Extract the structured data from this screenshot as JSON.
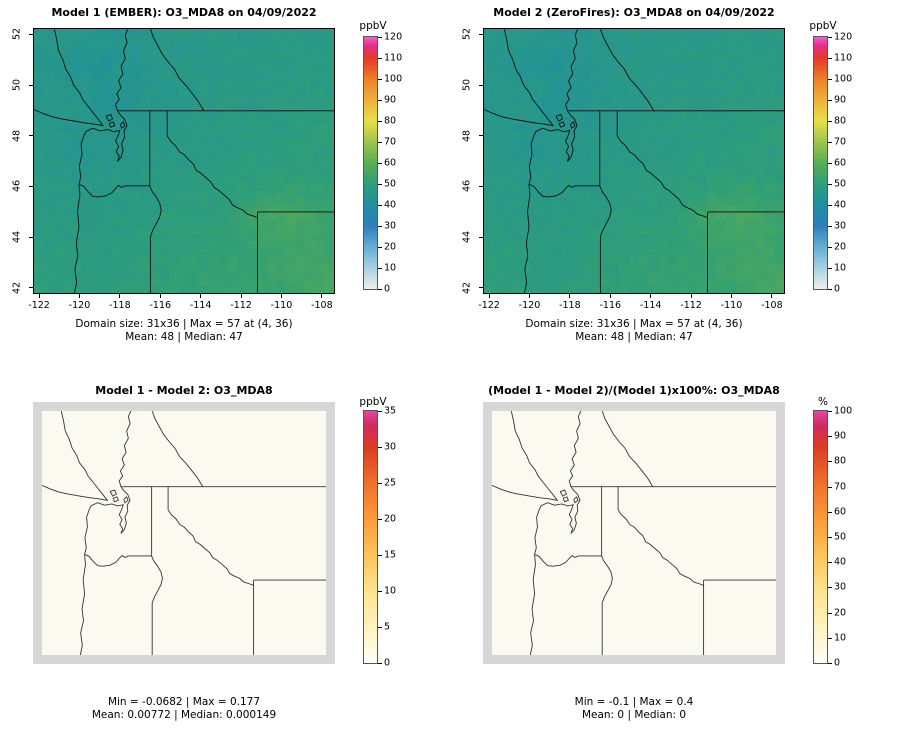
{
  "figure": {
    "background": "#ffffff"
  },
  "panels": [
    {
      "title": "Model 1 (EMBER): O3_MDA8 on 04/09/2022",
      "caption1": "Domain size: 31x36 | Max = 57 at (4, 36)",
      "caption2": "Mean: 48 | Median: 47"
    },
    {
      "title": "Model 2 (ZeroFires): O3_MDA8 on 04/09/2022",
      "caption1": "Domain size: 31x36 | Max = 57 at (4, 36)",
      "caption2": "Mean: 48 | Median: 47"
    },
    {
      "title": "Model 1 - Model 2: O3_MDA8",
      "caption1": "Min = -0.0682 | Max = 0.177",
      "caption2": "Mean: 0.00772 | Median: 0.000149"
    },
    {
      "title": "(Model 1 - Model 2)/(Model 1)x100%: O3_MDA8",
      "caption1": "Min = -0.1 | Max = 0.4",
      "caption2": "Mean: 0 | Median: 0"
    }
  ],
  "axes": {
    "x_ticks": [
      -122,
      -120,
      -118,
      -116,
      -114,
      -112,
      -110,
      -108
    ],
    "y_ticks": [
      42,
      44,
      46,
      48,
      50,
      52
    ],
    "x_range": [
      -122.3,
      -107.35
    ],
    "y_range": [
      41.75,
      52.25
    ]
  },
  "colorbars": [
    {
      "title": "ppbV",
      "min": 0,
      "max": 120,
      "ticks": [
        0,
        10,
        20,
        30,
        40,
        50,
        60,
        70,
        80,
        90,
        100,
        110,
        120
      ],
      "stops": [
        [
          0,
          "#f0efeb"
        ],
        [
          10,
          "#aacfe2"
        ],
        [
          20,
          "#64aed3"
        ],
        [
          30,
          "#2f7fbc"
        ],
        [
          40,
          "#1f8f9f"
        ],
        [
          50,
          "#2f9e78"
        ],
        [
          60,
          "#5aad52"
        ],
        [
          70,
          "#9dc44d"
        ],
        [
          80,
          "#e8df4a"
        ],
        [
          90,
          "#f0b03c"
        ],
        [
          100,
          "#ee7f28"
        ],
        [
          110,
          "#e5372b"
        ],
        [
          116,
          "#e2308b"
        ],
        [
          120,
          "#ef63c3"
        ]
      ]
    },
    {
      "title": "ppbV",
      "min": 0,
      "max": 120,
      "ticks": [
        0,
        10,
        20,
        30,
        40,
        50,
        60,
        70,
        80,
        90,
        100,
        110,
        120
      ],
      "stops": [
        [
          0,
          "#f0efeb"
        ],
        [
          10,
          "#aacfe2"
        ],
        [
          20,
          "#64aed3"
        ],
        [
          30,
          "#2f7fbc"
        ],
        [
          40,
          "#1f8f9f"
        ],
        [
          50,
          "#2f9e78"
        ],
        [
          60,
          "#5aad52"
        ],
        [
          70,
          "#9dc44d"
        ],
        [
          80,
          "#e8df4a"
        ],
        [
          90,
          "#f0b03c"
        ],
        [
          100,
          "#ee7f28"
        ],
        [
          110,
          "#e5372b"
        ],
        [
          116,
          "#e2308b"
        ],
        [
          120,
          "#ef63c3"
        ]
      ]
    },
    {
      "title": "ppbV",
      "min": 0,
      "max": 35,
      "ticks": [
        0,
        5,
        10,
        15,
        20,
        25,
        30,
        35
      ],
      "stops": [
        [
          0,
          "#fffef8"
        ],
        [
          5,
          "#fdf3bf"
        ],
        [
          10,
          "#fee38d"
        ],
        [
          15,
          "#fdc35b"
        ],
        [
          20,
          "#fb9b3a"
        ],
        [
          25,
          "#ef702b"
        ],
        [
          30,
          "#dc3b26"
        ],
        [
          33,
          "#cf2a60"
        ],
        [
          35,
          "#e2479d"
        ]
      ]
    },
    {
      "title": "%",
      "min": 0,
      "max": 100,
      "ticks": [
        0,
        10,
        20,
        30,
        40,
        50,
        60,
        70,
        80,
        90,
        100
      ],
      "stops": [
        [
          0,
          "#fffef8"
        ],
        [
          14,
          "#fdf3bf"
        ],
        [
          29,
          "#fee38d"
        ],
        [
          43,
          "#fdc35b"
        ],
        [
          57,
          "#fb9b3a"
        ],
        [
          71,
          "#ef702b"
        ],
        [
          86,
          "#dc3b26"
        ],
        [
          94,
          "#cf2a60"
        ],
        [
          100,
          "#e2479d"
        ]
      ]
    }
  ],
  "map_colors": {
    "diff_field": "#fbfaf1",
    "diff_margin": "#d7d7d7",
    "outline_top": "#101010",
    "outline_bottom": "#333333"
  },
  "chart_data": [
    {
      "type": "heatmap",
      "title": "Model 1 (EMBER): O3_MDA8 on 04/09/2022",
      "model": "Model 1 (EMBER)",
      "variable": "O3_MDA8",
      "date": "04/09/2022",
      "units": "ppbV",
      "x_ticks": [
        -122,
        -120,
        -118,
        -116,
        -114,
        -112,
        -110,
        -108
      ],
      "y_ticks": [
        42,
        44,
        46,
        48,
        50,
        52
      ],
      "colorbar": {
        "min": 0,
        "max": 120,
        "step": 10
      },
      "stats": {
        "domain_size": "31x36",
        "max": 57,
        "max_location": "(4, 36)",
        "mean": 48,
        "median": 47
      },
      "estimated_grid": {
        "note": "coarse visual estimate of the plotted O3_MDA8 field (ppbV); rows north to south",
        "lon_points": [
          -122.3,
          -120.4,
          -118.5,
          -116.6,
          -114.8,
          -112.9,
          -111.0,
          -109.2,
          -107.4
        ],
        "lat_points": [
          52,
          50.6,
          49.1,
          47.7,
          46.3,
          44.9,
          43.4,
          42
        ],
        "values": [
          [
            46,
            45,
            44,
            45,
            46,
            46,
            46,
            47,
            47
          ],
          [
            45,
            44,
            43,
            45,
            46,
            46,
            47,
            47,
            47
          ],
          [
            46,
            45,
            44,
            45,
            46,
            47,
            47,
            48,
            48
          ],
          [
            46,
            44,
            45,
            46,
            47,
            47,
            48,
            48,
            49
          ],
          [
            47,
            46,
            46,
            47,
            48,
            48,
            49,
            50,
            50
          ],
          [
            48,
            47,
            47,
            48,
            49,
            50,
            53,
            56,
            52
          ],
          [
            49,
            48,
            48,
            49,
            50,
            51,
            52,
            54,
            53
          ],
          [
            50,
            49,
            49,
            50,
            51,
            52,
            52,
            53,
            56
          ]
        ]
      }
    },
    {
      "type": "heatmap",
      "title": "Model 2 (ZeroFires): O3_MDA8 on 04/09/2022",
      "model": "Model 2 (ZeroFires)",
      "variable": "O3_MDA8",
      "date": "04/09/2022",
      "units": "ppbV",
      "colorbar": {
        "min": 0,
        "max": 120,
        "step": 10
      },
      "stats": {
        "domain_size": "31x36",
        "max": 57,
        "max_location": "(4, 36)",
        "mean": 48,
        "median": 47
      },
      "field_note": "visually identical to Model 1 field (differences < 0.2 ppbV)"
    },
    {
      "type": "heatmap",
      "title": "Model 1 - Model 2: O3_MDA8",
      "units": "ppbV",
      "colorbar": {
        "min": 0,
        "max": 35,
        "step": 5
      },
      "stats": {
        "min": -0.0682,
        "max": 0.177,
        "mean": 0.00772,
        "median": 0.000149
      },
      "field_note": "difference field is ~0 everywhere; renders as uniform white"
    },
    {
      "type": "heatmap",
      "title": "(Model 1 - Model 2)/(Model 1)x100%: O3_MDA8",
      "units": "%",
      "colorbar": {
        "min": 0,
        "max": 100,
        "step": 10
      },
      "stats": {
        "min": -0.1,
        "max": 0.4,
        "mean": 0,
        "median": 0
      },
      "field_note": "percent difference is ~0 everywhere; renders as uniform white"
    }
  ],
  "map_outlines": {
    "lines": {
      "pacific-coast-puget-sound": [
        [
          13.5,
          100
        ],
        [
          14.2,
          96
        ],
        [
          13.6,
          91
        ],
        [
          14.6,
          86
        ],
        [
          14.1,
          81
        ],
        [
          15,
          75
        ],
        [
          14.5,
          69
        ],
        [
          15.3,
          63
        ],
        [
          15,
          58.8
        ],
        [
          15.6,
          56
        ],
        [
          15.1,
          52
        ],
        [
          16,
          47.5
        ],
        [
          15.7,
          43.5
        ],
        [
          16.6,
          40.5
        ],
        [
          17.3,
          38.8
        ],
        [
          19.6,
          37.6
        ],
        [
          22,
          38.6
        ],
        [
          24.6,
          38.1
        ],
        [
          26.6,
          38.9
        ],
        [
          28.6,
          38.4
        ],
        [
          28,
          40.5
        ],
        [
          27.2,
          42.5
        ],
        [
          28.2,
          44.5
        ],
        [
          27.4,
          46.5
        ],
        [
          28.4,
          48.2
        ],
        [
          27.8,
          50.2
        ],
        [
          29,
          48.6
        ],
        [
          29.7,
          46
        ],
        [
          29.2,
          43.5
        ],
        [
          30.2,
          41
        ],
        [
          30,
          38.6
        ],
        [
          31,
          36.6
        ],
        [
          30.2,
          34.2
        ],
        [
          28.8,
          32.6
        ],
        [
          27.8,
          31
        ],
        [
          27.2,
          28.6
        ],
        [
          28.4,
          26.6
        ],
        [
          27.6,
          24.6
        ],
        [
          29,
          22.2
        ],
        [
          28.2,
          19.6
        ],
        [
          29.6,
          17
        ],
        [
          29,
          14.2
        ],
        [
          30.4,
          11.2
        ],
        [
          29.8,
          8.2
        ],
        [
          31,
          5.2
        ],
        [
          30.4,
          2.2
        ],
        [
          31.3,
          0
        ]
      ],
      "wa-or-border-columbia": [
        [
          15,
          58.8
        ],
        [
          16.6,
          59.6
        ],
        [
          18,
          61.6
        ],
        [
          19.6,
          63.4
        ],
        [
          21.6,
          63.6
        ],
        [
          24,
          63.2
        ],
        [
          26,
          62
        ],
        [
          27.2,
          60.4
        ],
        [
          28.2,
          59.2
        ],
        [
          29.2,
          60
        ],
        [
          30.6,
          59.4
        ],
        [
          38.6,
          59.4
        ]
      ],
      "wa-id-border": [
        [
          38.6,
          31
        ],
        [
          38.6,
          59.4
        ]
      ],
      "or-id-border-snake": [
        [
          38.6,
          59.4
        ],
        [
          39.4,
          61.6
        ],
        [
          40.7,
          63.6
        ],
        [
          41.9,
          66
        ],
        [
          42.4,
          68.6
        ],
        [
          41.9,
          71.2
        ],
        [
          40.8,
          73.6
        ],
        [
          39.6,
          76.2
        ],
        [
          38.8,
          78.6
        ],
        [
          38.8,
          100
        ]
      ],
      "us-canada-border": [
        [
          27.8,
          31
        ],
        [
          100,
          31
        ]
      ],
      "bc-ab-border": [
        [
          56.6,
          31
        ],
        [
          54.8,
          27.5
        ],
        [
          52.6,
          24.2
        ],
        [
          50.8,
          21.6
        ],
        [
          48.4,
          18.6
        ],
        [
          46.8,
          15.2
        ],
        [
          44.8,
          12.6
        ],
        [
          42.8,
          9.6
        ],
        [
          41.2,
          6.2
        ],
        [
          39.8,
          3.2
        ],
        [
          38.8,
          0
        ]
      ],
      "id-mt-border": [
        [
          44.4,
          31
        ],
        [
          44.4,
          40.5
        ],
        [
          45.6,
          42.6
        ],
        [
          47.1,
          44.1
        ],
        [
          48.6,
          46.6
        ],
        [
          50.1,
          47.6
        ],
        [
          51.6,
          49.6
        ],
        [
          53.1,
          51.1
        ],
        [
          54.1,
          53.6
        ],
        [
          55.6,
          54.6
        ],
        [
          57.6,
          56.6
        ],
        [
          59.1,
          58.1
        ],
        [
          60.1,
          60.1
        ],
        [
          61.6,
          61.1
        ],
        [
          63.6,
          63.1
        ],
        [
          65.1,
          64.6
        ],
        [
          66.1,
          66.6
        ],
        [
          67.6,
          67.6
        ],
        [
          69.6,
          68.6
        ],
        [
          71.1,
          70.1
        ],
        [
          73,
          70.8
        ],
        [
          74.5,
          71.5
        ]
      ],
      "id-wy-border": [
        [
          74.5,
          69.3
        ],
        [
          74.5,
          100
        ]
      ],
      "mt-wy-border": [
        [
          74.5,
          69.3
        ],
        [
          100,
          69.3
        ]
      ],
      "vancouver-island": [
        [
          0,
          30.5
        ],
        [
          3,
          32
        ],
        [
          6,
          33.2
        ],
        [
          9,
          34
        ],
        [
          13,
          34.8
        ],
        [
          17,
          35.6
        ],
        [
          20,
          36
        ],
        [
          23,
          36.6
        ],
        [
          21.4,
          34.2
        ],
        [
          19.6,
          31.6
        ],
        [
          18,
          29.2
        ],
        [
          16.2,
          26.6
        ],
        [
          15.2,
          24.2
        ],
        [
          13.2,
          21.2
        ],
        [
          12.2,
          18.2
        ],
        [
          10.6,
          15.2
        ],
        [
          9.6,
          11.6
        ],
        [
          8.2,
          8.2
        ],
        [
          7.6,
          4.2
        ],
        [
          6.8,
          0
        ]
      ]
    },
    "islands": [
      [
        [
          24,
          33
        ],
        [
          25.6,
          32.4
        ],
        [
          26.2,
          34
        ],
        [
          24.9,
          34.9
        ],
        [
          24,
          33
        ]
      ],
      [
        [
          25,
          35.8
        ],
        [
          26.4,
          35.2
        ],
        [
          26.9,
          36.6
        ],
        [
          25.6,
          37.2
        ],
        [
          25,
          35.8
        ]
      ],
      [
        [
          28.8,
          36.2
        ],
        [
          29.8,
          35.2
        ],
        [
          30.3,
          36.6
        ],
        [
          29.2,
          37.6
        ],
        [
          28.8,
          36.2
        ]
      ]
    ]
  }
}
